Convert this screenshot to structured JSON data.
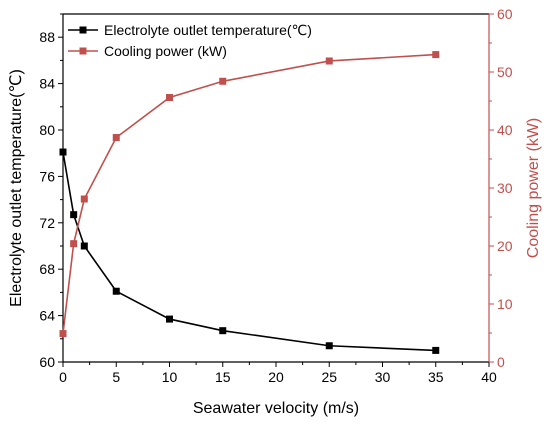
{
  "chart_data": {
    "type": "line",
    "xlabel": "Seawater velocity (m/s)",
    "ylabel_left": "Electrolyte outlet temperature(℃)",
    "ylabel_right": "Cooling power (kW)",
    "xlim": [
      0,
      40
    ],
    "ylim_left": [
      60,
      90
    ],
    "ylim_right": [
      0,
      60
    ],
    "x_ticks": [
      0,
      5,
      10,
      15,
      20,
      25,
      30,
      35,
      40
    ],
    "y_left_ticks": [
      60,
      64,
      68,
      72,
      76,
      80,
      84,
      88
    ],
    "y_right_ticks": [
      0,
      10,
      20,
      30,
      40,
      50,
      60
    ],
    "grid": false,
    "legend_position": "top-left",
    "colors": {
      "left_axis": "#000000",
      "right_axis": "#c0504d"
    },
    "series": [
      {
        "name": "Electrolyte outlet temperature(℃)",
        "axis": "left",
        "color": "#000000",
        "x": [
          0,
          1,
          2,
          5,
          10,
          15,
          25,
          35
        ],
        "values": [
          78.1,
          72.7,
          70.0,
          66.1,
          63.7,
          62.7,
          61.4,
          61.0
        ]
      },
      {
        "name": "Cooling power (kW)",
        "axis": "right",
        "color": "#c0504d",
        "x": [
          0,
          1,
          2,
          5,
          10,
          15,
          25,
          35
        ],
        "values": [
          4.9,
          20.4,
          28.1,
          38.7,
          45.6,
          48.4,
          51.9,
          53.0
        ]
      }
    ]
  }
}
